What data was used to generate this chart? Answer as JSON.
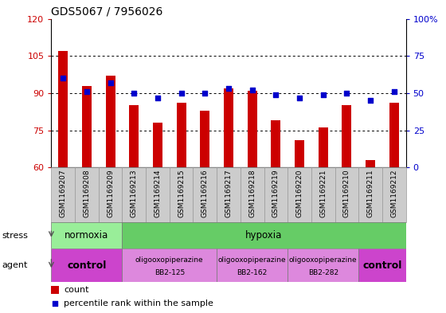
{
  "title": "GDS5067 / 7956026",
  "samples": [
    "GSM1169207",
    "GSM1169208",
    "GSM1169209",
    "GSM1169213",
    "GSM1169214",
    "GSM1169215",
    "GSM1169216",
    "GSM1169217",
    "GSM1169218",
    "GSM1169219",
    "GSM1169220",
    "GSM1169221",
    "GSM1169210",
    "GSM1169211",
    "GSM1169212"
  ],
  "counts": [
    107,
    93,
    97,
    85,
    78,
    86,
    83,
    92,
    91,
    79,
    71,
    76,
    85,
    63,
    86
  ],
  "percentiles": [
    60,
    51,
    57,
    50,
    47,
    50,
    50,
    53,
    52,
    49,
    47,
    49,
    50,
    45,
    51
  ],
  "ylim_left": [
    60,
    120
  ],
  "ylim_right": [
    0,
    100
  ],
  "yticks_left": [
    60,
    75,
    90,
    105,
    120
  ],
  "yticks_right": [
    0,
    25,
    50,
    75,
    100
  ],
  "bar_color": "#cc0000",
  "dot_color": "#0000cc",
  "stress_groups": [
    {
      "label": "normoxia",
      "start": 0,
      "end": 3,
      "color": "#99ee99"
    },
    {
      "label": "hypoxia",
      "start": 3,
      "end": 15,
      "color": "#66cc66"
    }
  ],
  "agent_groups": [
    {
      "label": "control",
      "start": 0,
      "end": 3,
      "color": "#cc44cc"
    },
    {
      "label": "oligooxopiperazine\nBB2-125",
      "start": 3,
      "end": 7,
      "color": "#dd88dd"
    },
    {
      "label": "oligooxopiperazine\nBB2-162",
      "start": 7,
      "end": 10,
      "color": "#dd88dd"
    },
    {
      "label": "oligooxopiperazine\nBB2-282",
      "start": 10,
      "end": 13,
      "color": "#dd88dd"
    },
    {
      "label": "control",
      "start": 13,
      "end": 15,
      "color": "#cc44cc"
    }
  ],
  "background_color": "#ffffff",
  "tick_label_color_left": "#cc0000",
  "tick_label_color_right": "#0000cc",
  "xtick_bg": "#cccccc",
  "xtick_border": "#999999"
}
